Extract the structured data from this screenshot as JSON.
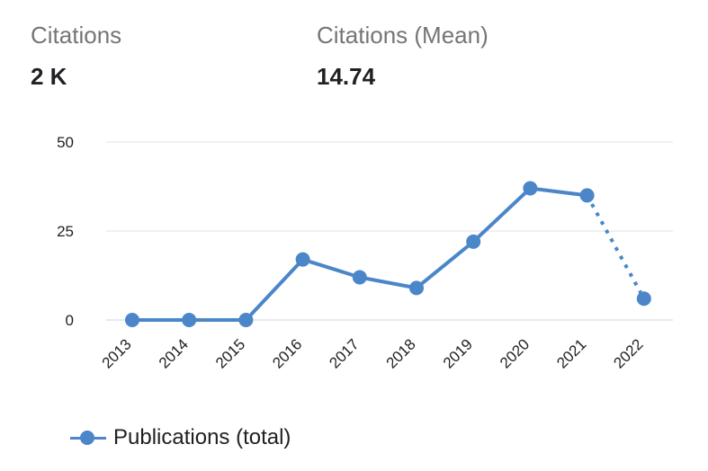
{
  "stats": {
    "citations": {
      "label": "Citations",
      "value": "2 K"
    },
    "mean": {
      "label": "Citations (Mean)",
      "value": "14.74"
    }
  },
  "chart_data": {
    "type": "line",
    "categories": [
      "2013",
      "2014",
      "2015",
      "2016",
      "2017",
      "2018",
      "2019",
      "2020",
      "2021",
      "2022"
    ],
    "series": [
      {
        "name": "Publications (total)",
        "values": [
          0,
          0,
          0,
          17,
          12,
          9,
          22,
          37,
          35,
          6
        ],
        "color": "#4a86c8",
        "dotted_last_segment": true
      }
    ],
    "y_ticks": [
      "0",
      "25",
      "50"
    ],
    "ylim": [
      0,
      50
    ],
    "grid": true,
    "legend_position": "bottom-left"
  },
  "legend": {
    "label": "Publications (total)"
  }
}
